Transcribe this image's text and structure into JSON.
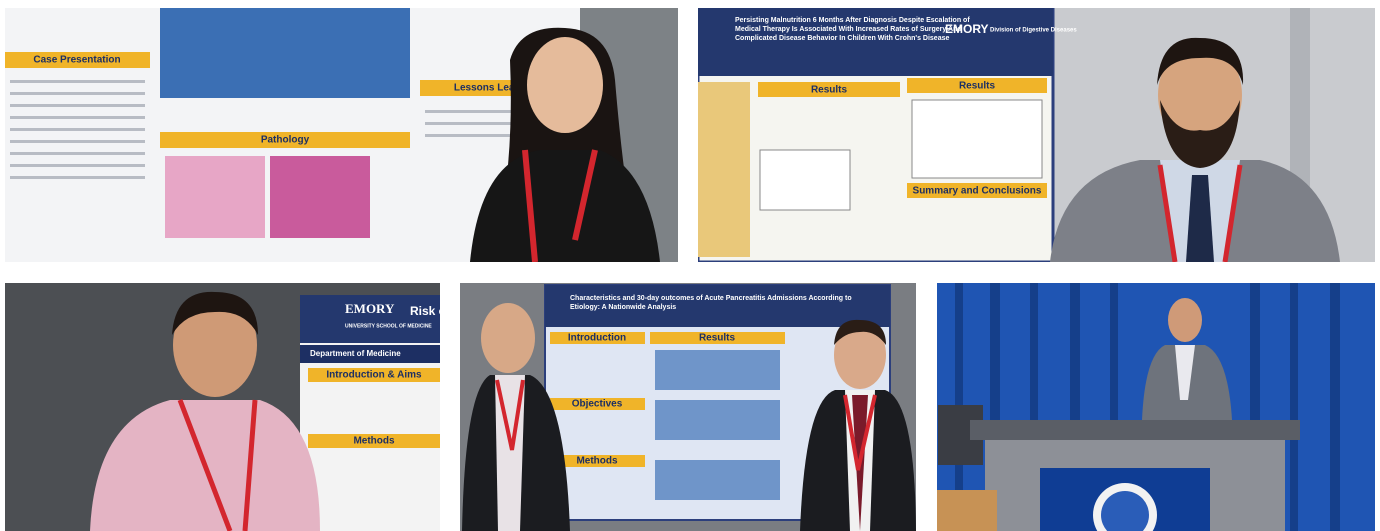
{
  "photos": [
    {
      "headings": [
        "Case Presentation",
        "Pathology",
        "Lessons Learned"
      ]
    },
    {
      "title": "Persisting Malnutrition 6 Months After Diagnosis Despite Escalation of Medical Therapy Is Associated With Increased Rates of Surgery And Complicated Disease Behavior In Children With Crohn's Disease",
      "logo": "EMORY",
      "division": "Division of Digestive Diseases",
      "headings": [
        "Results",
        "Results",
        "Summary and Conclusions"
      ]
    },
    {
      "logo": "EMORY",
      "school": "UNIVERSITY SCHOOL OF MEDICINE",
      "title": "Risk o",
      "department": "Department of Medicine",
      "headings": [
        "Introduction & Aims",
        "Methods"
      ]
    },
    {
      "title": "Characteristics and 30-day outcomes of Acute Pancreatitis Admissions According to Etiology: A Nationwide Analysis",
      "headings": [
        "Introduction",
        "Objectives",
        "Methods",
        "Results"
      ]
    },
    {}
  ]
}
